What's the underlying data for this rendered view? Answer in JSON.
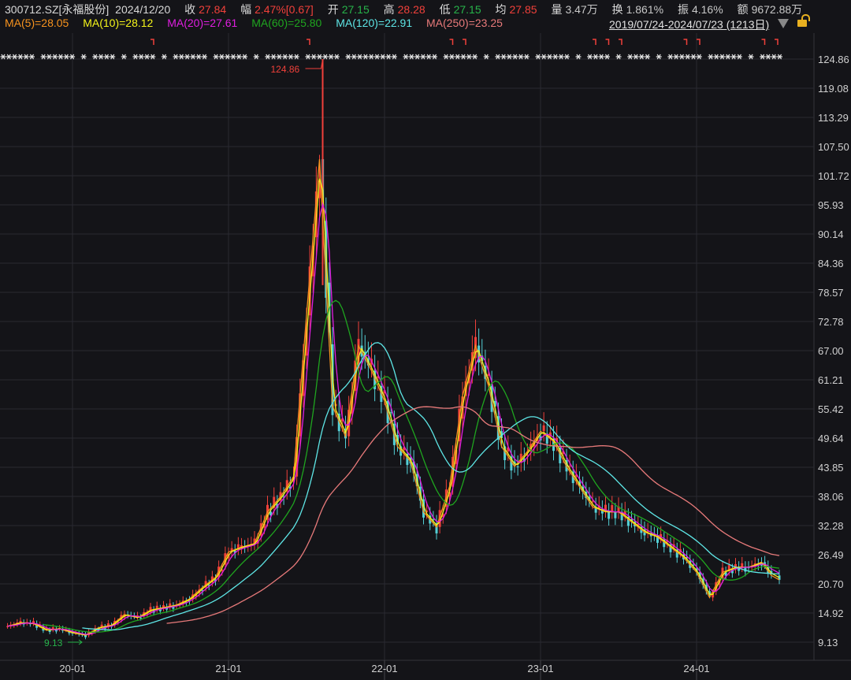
{
  "header": {
    "symbol": "300712.SZ[永福股份]",
    "date": "2024/12/20",
    "close_label": "收",
    "close": "27.84",
    "change_label": "幅",
    "change": "2.47%[0.67]",
    "open_label": "开",
    "open": "27.15",
    "high_label": "高",
    "high": "28.28",
    "low_label": "低",
    "low": "27.15",
    "avg_label": "均",
    "avg": "27.85",
    "volume_label": "量",
    "volume": "3.47万",
    "turnover_label": "换",
    "turnover": "1.861%",
    "amplitude_label": "振",
    "amplitude": "4.16%",
    "amount_label": "额",
    "amount": "9672.88万"
  },
  "ma_legend": [
    {
      "text": "MA(5)=28.05",
      "color": "#f7931e"
    },
    {
      "text": "MA(10)=28.12",
      "color": "#f5f51a"
    },
    {
      "text": "MA(20)=27.61",
      "color": "#e01ee0"
    },
    {
      "text": "MA(60)=25.80",
      "color": "#1fa51f"
    },
    {
      "text": "MA(120)=22.91",
      "color": "#5ee6e6"
    },
    {
      "text": "MA(250)=23.25",
      "color": "#e87a7a"
    }
  ],
  "range_label": "2019/07/24-2024/07/23 (1213日)",
  "icons": {
    "dropdown": "triangle-down-icon",
    "lock": "unlocked-padlock-icon"
  },
  "colors": {
    "up": "#f0403a",
    "down": "#54d0d6",
    "grid": "#2a2a31",
    "axis_text": "#d0d0d0",
    "high_marker": "#f0403a",
    "low_marker": "#27b34a"
  },
  "chart_data": {
    "type": "candlestick",
    "yscale": "linear",
    "ylim": [
      9.13,
      124.86
    ],
    "y_ticks": [
      "124.86",
      "119.08",
      "113.29",
      "107.50",
      "101.72",
      "95.93",
      "90.14",
      "84.36",
      "78.57",
      "72.78",
      "67.00",
      "61.21",
      "55.42",
      "49.64",
      "43.85",
      "38.06",
      "32.28",
      "26.49",
      "20.70",
      "14.92",
      "9.13"
    ],
    "x_ticks": [
      {
        "label": "20-01",
        "date": "2020-01"
      },
      {
        "label": "21-01",
        "date": "2021-01"
      },
      {
        "label": "22-01",
        "date": "2022-01"
      },
      {
        "label": "23-01",
        "date": "2023-01"
      },
      {
        "label": "24-01",
        "date": "2024-01"
      }
    ],
    "grid": true,
    "high_marker": {
      "date": "2021-08",
      "value": 124.86,
      "text": "124.86"
    },
    "low_marker": {
      "date": "2020-01",
      "value": 9.13,
      "text": "9.13"
    },
    "event_marks": [
      "2020-07",
      "2021-07",
      "2022-06",
      "2022-07",
      "2023-05",
      "2023-06",
      "2023-07",
      "2023-12",
      "2024-01",
      "2024-06",
      "2024-07"
    ],
    "monthly_close": [
      [
        "2019-08",
        12.3
      ],
      [
        "2019-09",
        13.0
      ],
      [
        "2019-10",
        12.8
      ],
      [
        "2019-11",
        11.5
      ],
      [
        "2019-12",
        11.8
      ],
      [
        "2020-01",
        11.0
      ],
      [
        "2020-02",
        10.5
      ],
      [
        "2020-03",
        12.0
      ],
      [
        "2020-04",
        12.5
      ],
      [
        "2020-05",
        14.6
      ],
      [
        "2020-06",
        14.0
      ],
      [
        "2020-07",
        15.5
      ],
      [
        "2020-08",
        16.0
      ],
      [
        "2020-09",
        16.5
      ],
      [
        "2020-10",
        17.7
      ],
      [
        "2020-11",
        20.0
      ],
      [
        "2020-12",
        22.0
      ],
      [
        "2021-01",
        27.0
      ],
      [
        "2021-02",
        28.0
      ],
      [
        "2021-03",
        28.7
      ],
      [
        "2021-04",
        35.0
      ],
      [
        "2021-05",
        38.0
      ],
      [
        "2021-06",
        42.0
      ],
      [
        "2021-07",
        74.0
      ],
      [
        "2021-08",
        105.0
      ],
      [
        "2021-09",
        56.0
      ],
      [
        "2021-10",
        50.0
      ],
      [
        "2021-11",
        68.0
      ],
      [
        "2021-12",
        63.0
      ],
      [
        "2022-01",
        57.0
      ],
      [
        "2022-02",
        48.0
      ],
      [
        "2022-03",
        45.0
      ],
      [
        "2022-04",
        35.0
      ],
      [
        "2022-05",
        32.0
      ],
      [
        "2022-06",
        40.0
      ],
      [
        "2022-07",
        58.0
      ],
      [
        "2022-08",
        68.0
      ],
      [
        "2022-09",
        60.0
      ],
      [
        "2022-10",
        48.0
      ],
      [
        "2022-11",
        44.0
      ],
      [
        "2022-12",
        47.0
      ],
      [
        "2023-01",
        51.0
      ],
      [
        "2023-02",
        49.0
      ],
      [
        "2023-03",
        44.0
      ],
      [
        "2023-04",
        40.0
      ],
      [
        "2023-05",
        36.0
      ],
      [
        "2023-06",
        35.0
      ],
      [
        "2023-07",
        35.0
      ],
      [
        "2023-08",
        33.0
      ],
      [
        "2023-09",
        31.0
      ],
      [
        "2023-10",
        30.0
      ],
      [
        "2023-11",
        28.0
      ],
      [
        "2023-12",
        26.0
      ],
      [
        "2024-01",
        23.0
      ],
      [
        "2024-02",
        18.0
      ],
      [
        "2024-03",
        23.0
      ],
      [
        "2024-04",
        24.0
      ],
      [
        "2024-05",
        24.0
      ],
      [
        "2024-06",
        25.0
      ],
      [
        "2024-07",
        21.5
      ]
    ],
    "ma_periods": [
      5,
      10,
      20,
      60,
      120,
      250
    ]
  }
}
